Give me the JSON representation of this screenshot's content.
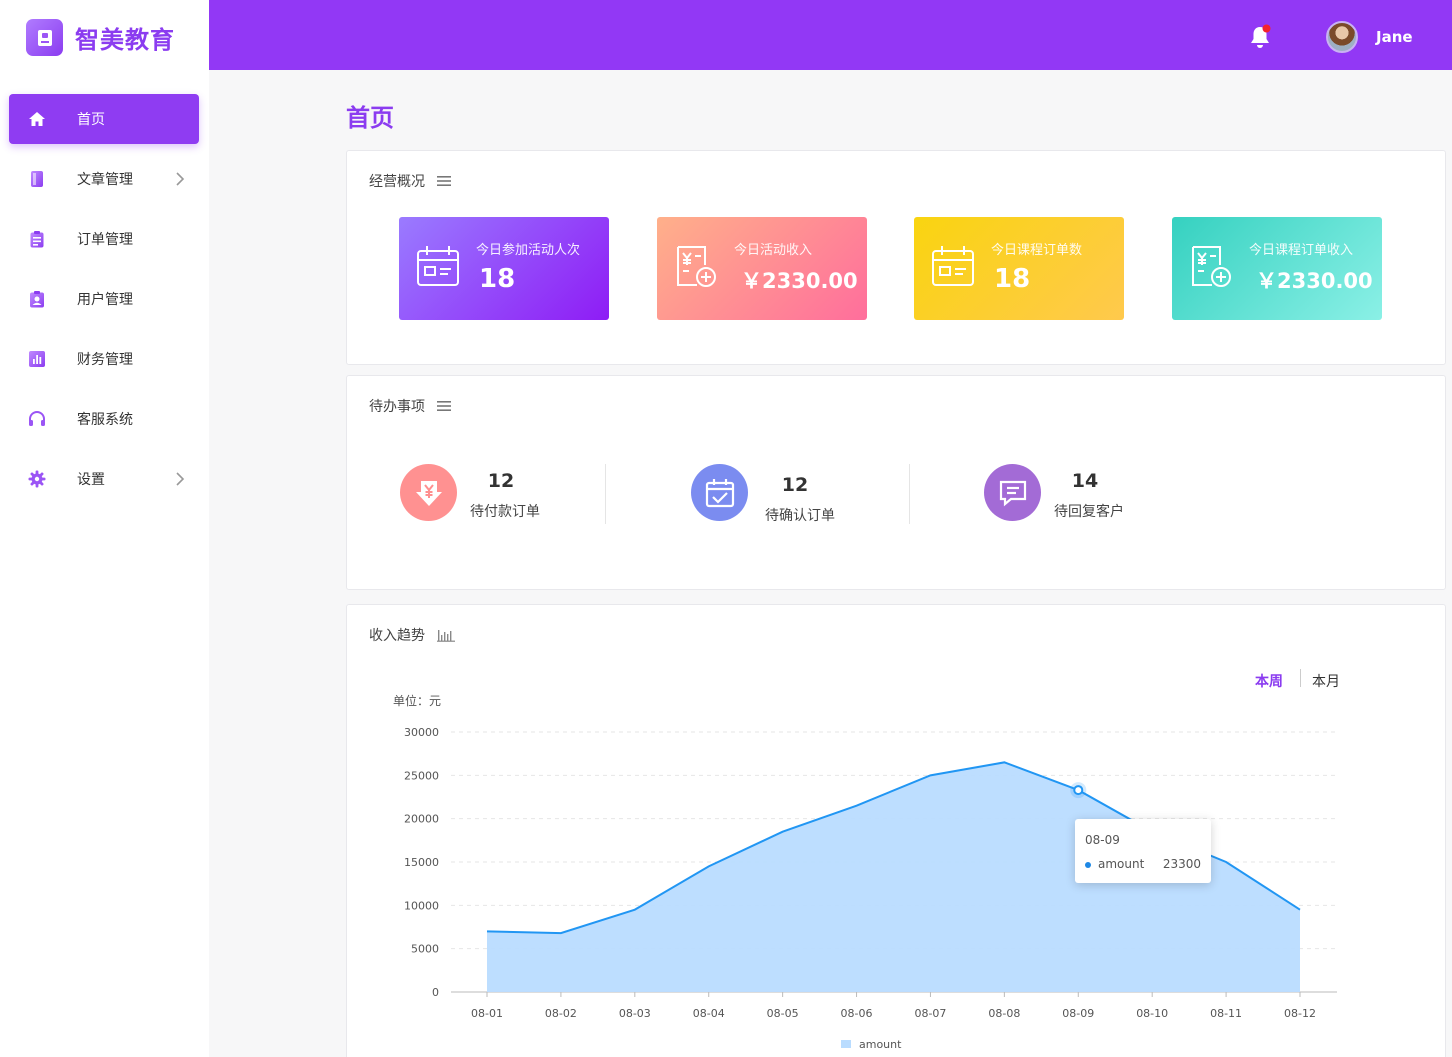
{
  "brand": {
    "name": "智美教育",
    "accent": "#8f3cf2",
    "header_bg": "#9238f5"
  },
  "header": {
    "username": "Jane",
    "notification_dot": true
  },
  "sidebar": {
    "items": [
      {
        "label": "首页",
        "icon": "home-icon",
        "active": true,
        "chevron": false
      },
      {
        "label": "文章管理",
        "icon": "book-icon",
        "active": false,
        "chevron": true
      },
      {
        "label": "订单管理",
        "icon": "clipboard-icon",
        "active": false,
        "chevron": false
      },
      {
        "label": "用户管理",
        "icon": "user-badge-icon",
        "active": false,
        "chevron": false
      },
      {
        "label": "财务管理",
        "icon": "bar-chart-icon",
        "active": false,
        "chevron": false
      },
      {
        "label": "客服系统",
        "icon": "headset-icon",
        "active": false,
        "chevron": false
      },
      {
        "label": "设置",
        "icon": "gear-icon",
        "active": false,
        "chevron": true
      }
    ]
  },
  "page": {
    "title": "首页"
  },
  "overview": {
    "title": "经营概况",
    "cards": [
      {
        "label": "今日参加活动人次",
        "value": "18",
        "icon": "calendar-icon",
        "gradient": [
          "#9a7bff",
          "#8e1cf5"
        ]
      },
      {
        "label": "今日活动收入",
        "value": "￥2330.00",
        "icon": "receipt-add-icon",
        "gradient": [
          "#ffb08a",
          "#ff6e9c"
        ]
      },
      {
        "label": "今日课程订单数",
        "value": "18",
        "icon": "calendar-icon",
        "gradient": [
          "#f9d410",
          "#ffc94d"
        ]
      },
      {
        "label": "今日课程订单收入",
        "value": "￥2330.00",
        "icon": "receipt-add-icon",
        "gradient": [
          "#35d1c0",
          "#8bf0e6"
        ]
      }
    ]
  },
  "todos": {
    "title": "待办事项",
    "items": [
      {
        "count": "12",
        "label": "待付款订单",
        "icon": "yen-down-icon",
        "color": "#ff8f8f"
      },
      {
        "count": "12",
        "label": "待确认订单",
        "icon": "calendar-check-icon",
        "color": "#7b8cf0"
      },
      {
        "count": "14",
        "label": "待回复客户",
        "icon": "chat-icon",
        "color": "#a36bd6"
      }
    ]
  },
  "revenue": {
    "title": "收入趋势",
    "ranges": [
      "本周",
      "本月"
    ],
    "active_range": "本周",
    "unit_label": "单位：元",
    "tooltip": {
      "x": "08-09",
      "series": "amount",
      "value": "23300"
    }
  },
  "chart_data": {
    "type": "area",
    "x": [
      "08-01",
      "08-02",
      "08-03",
      "08-04",
      "08-05",
      "08-06",
      "08-07",
      "08-08",
      "08-09",
      "08-10",
      "08-11",
      "08-12"
    ],
    "series": [
      {
        "name": "amount",
        "values": [
          7000,
          6800,
          9500,
          14500,
          18500,
          21500,
          25000,
          26500,
          23300,
          18500,
          15000,
          9500
        ]
      }
    ],
    "ylim": [
      0,
      30000
    ],
    "yticks": [
      0,
      5000,
      10000,
      15000,
      20000,
      25000,
      30000
    ],
    "ylabel": "单位：元",
    "legend": "bottom-center",
    "grid": true,
    "line_color": "#2196f3",
    "fill_color": "#b9dcff"
  }
}
